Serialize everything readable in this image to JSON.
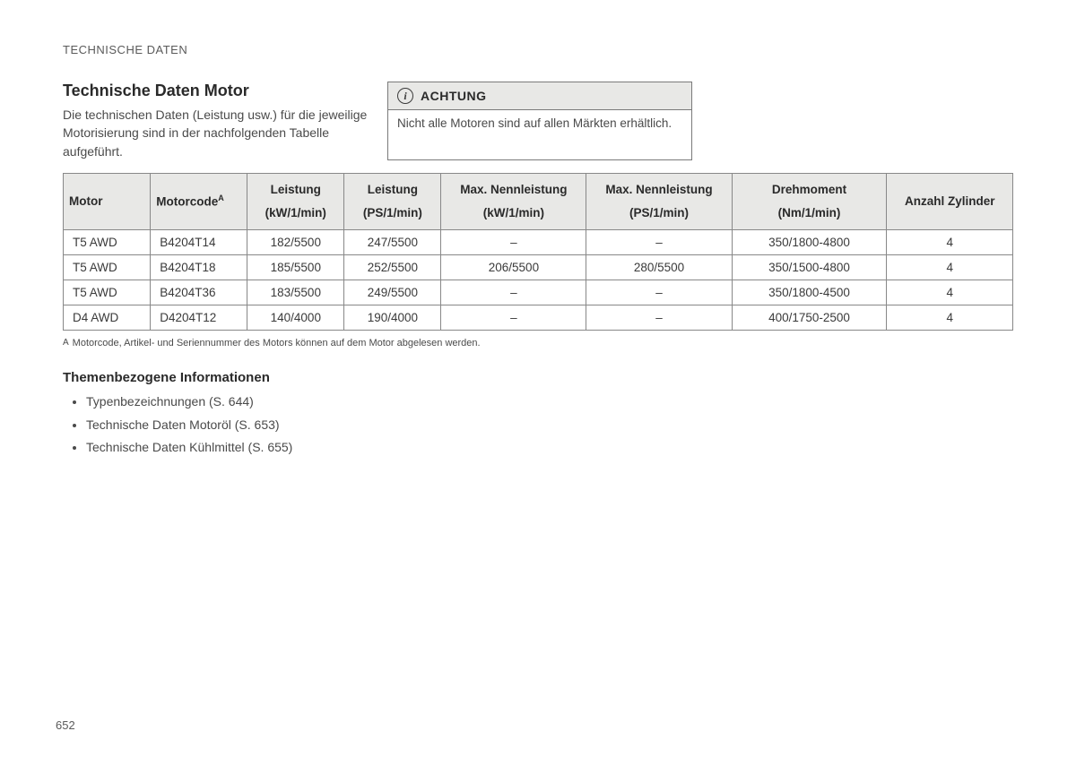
{
  "section_label": "TECHNISCHE DATEN",
  "title": "Technische Daten Motor",
  "intro": "Die technischen Daten (Leistung usw.) für die jeweilige Motorisierung sind in der nachfolgenden Tabelle aufgeführt.",
  "notice": {
    "icon_glyph": "i",
    "heading": "ACHTUNG",
    "body": "Nicht alle Motoren sind auf allen Märkten erhältlich."
  },
  "table": {
    "columns": [
      {
        "main": "Motor",
        "sub": "",
        "align": "left",
        "width": "9%"
      },
      {
        "main": "Motorcode",
        "main_sup": "A",
        "sub": "",
        "align": "left",
        "width": "10%"
      },
      {
        "main": "Leistung",
        "sub": "(kW/1/min)",
        "align": "center",
        "width": "10%"
      },
      {
        "main": "Leistung",
        "sub": "(PS/1/min)",
        "align": "center",
        "width": "10%"
      },
      {
        "main": "Max. Nennleistung",
        "sub": "(kW/1/min)",
        "align": "center",
        "width": "15%"
      },
      {
        "main": "Max. Nennleistung",
        "sub": "(PS/1/min)",
        "align": "center",
        "width": "15%"
      },
      {
        "main": "Drehmoment",
        "sub": "(Nm/1/min)",
        "align": "center",
        "width": "16%"
      },
      {
        "main": "Anzahl Zylinder",
        "sub": "",
        "align": "center",
        "width": "13%"
      }
    ],
    "rows": [
      [
        "T5 AWD",
        "B4204T14",
        "182/5500",
        "247/5500",
        "–",
        "–",
        "350/1800-4800",
        "4"
      ],
      [
        "T5 AWD",
        "B4204T18",
        "185/5500",
        "252/5500",
        "206/5500",
        "280/5500",
        "350/1500-4800",
        "4"
      ],
      [
        "T5 AWD",
        "B4204T36",
        "183/5500",
        "249/5500",
        "–",
        "–",
        "350/1800-4500",
        "4"
      ],
      [
        "D4 AWD",
        "D4204T12",
        "140/4000",
        "190/4000",
        "–",
        "–",
        "400/1750-2500",
        "4"
      ]
    ],
    "header_bg": "#e8e8e6",
    "border_color": "#888888"
  },
  "footnote": {
    "mark": "A",
    "text": "Motorcode, Artikel- und Seriennummer des Motors können auf dem Motor abgelesen werden."
  },
  "related": {
    "heading": "Themenbezogene Informationen",
    "items": [
      "Typenbezeichnungen (S. 644)",
      "Technische Daten Motoröl (S. 653)",
      "Technische Daten Kühlmittel (S. 655)"
    ]
  },
  "page_number": "652",
  "colors": {
    "page_bg": "#ffffff",
    "text": "#3a3a3a",
    "muted": "#5a5a5a",
    "header_bg": "#e8e8e6",
    "border": "#888888"
  },
  "typography": {
    "base_font": "Arial, Helvetica, sans-serif",
    "title_size_pt": 18,
    "body_size_pt": 14,
    "table_size_pt": 13.5,
    "footnote_size_pt": 11
  }
}
